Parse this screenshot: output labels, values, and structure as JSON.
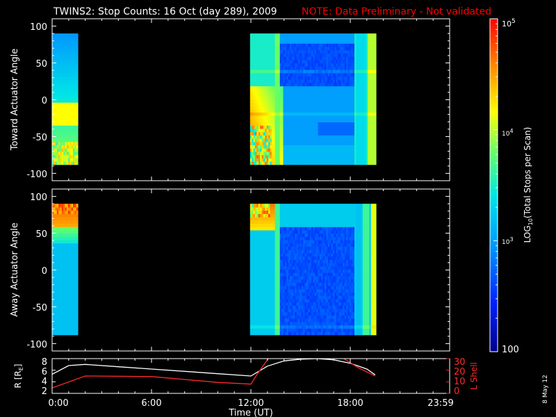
{
  "title": "TWINS2: Stop Counts: 16 Oct (day 289), 2009",
  "note": "NOTE: Data Preliminary - Not validated",
  "stamp": "8 May 12",
  "colors": {
    "background": "#000000",
    "axes": "#ffffff",
    "note": "#ff0000",
    "lshell": "#ff2a2a",
    "radius": "#ffffff"
  },
  "chart_data": [
    {
      "type": "heatmap",
      "panel": "toward",
      "ylabel": "Toward Actuator Angle",
      "yticks": [
        "100",
        "50",
        "0",
        "-50",
        "-100"
      ],
      "ylim": [
        -110,
        110
      ],
      "angle_range": [
        -88,
        90
      ],
      "coverage_hours": [
        [
          0.0,
          1.55
        ],
        [
          11.95,
          19.55
        ]
      ],
      "x_range_hours": [
        0,
        24
      ]
    },
    {
      "type": "heatmap",
      "panel": "away",
      "ylabel": "Away Actuator Angle",
      "yticks": [
        "100",
        "50",
        "0",
        "-50",
        "-100"
      ],
      "ylim": [
        -110,
        110
      ],
      "angle_range": [
        -88,
        90
      ],
      "coverage_hours": [
        [
          0.0,
          1.55
        ],
        [
          11.95,
          19.55
        ]
      ],
      "x_range_hours": [
        0,
        24
      ]
    },
    {
      "type": "line",
      "panel": "orbit",
      "ylabel_left": "R [R",
      "ylabel_left_sub": "E",
      "ylabel_left_end": "]",
      "yticks_left": [
        "8",
        "6",
        "4",
        "2"
      ],
      "ylim_left": [
        2,
        8
      ],
      "ylabel_right": "L Shell",
      "yticks_right": [
        "30",
        "20",
        "10",
        "0"
      ],
      "ylim_right": [
        0,
        30
      ],
      "xlabel": "Time (UT)",
      "xticks": [
        "0:00",
        "6:00",
        "12:00",
        "18:00",
        "23:59"
      ],
      "xtick_hours": [
        0,
        6,
        12,
        18,
        23.98
      ],
      "series": [
        {
          "x": [
            0,
            1,
            2,
            4,
            6,
            8,
            10,
            12,
            13,
            14,
            15,
            16,
            17,
            18,
            19,
            19.5
          ],
          "y": [
            5.3,
            6.8,
            7.0,
            6.6,
            6.2,
            5.8,
            5.4,
            5.0,
            6.7,
            7.6,
            7.9,
            8.0,
            7.8,
            7.2,
            6.2,
            5.2
          ]
        },
        {
          "x": [
            0,
            2,
            6,
            10,
            12,
            12.4,
            13.1,
            null,
            17.5,
            18.5,
            19.5
          ],
          "y": [
            4.7,
            15.0,
            14.5,
            9.5,
            8.0,
            17.0,
            31.0,
            null,
            31.0,
            22.0,
            15.0
          ]
        }
      ]
    },
    {
      "type": "colorbar",
      "label_log": "LOG",
      "label_sub": "10",
      "label_rest": "(Total Stops per Scan)",
      "ticks": [
        {
          "base": "10",
          "exp": "5",
          "value": 100000
        },
        {
          "base": "10",
          "exp": "4",
          "value": 10000
        },
        {
          "base": "10",
          "exp": "3",
          "value": 1000
        },
        {
          "base": "100",
          "exp": "",
          "value": 100
        }
      ],
      "range": [
        100,
        100000
      ]
    }
  ]
}
